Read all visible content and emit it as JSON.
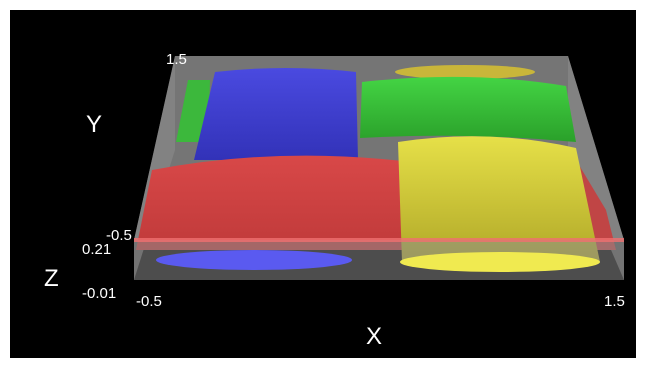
{
  "scene": {
    "background_color": "#000000",
    "box_color": "#8a8a8a",
    "colors": {
      "red": "#e85a5a",
      "green": "#3cc83c",
      "blue": "#4646d8",
      "yellow": "#d8d23c"
    }
  },
  "axes": {
    "x": {
      "label": "X",
      "min_label": "-0.5",
      "max_label": "1.5"
    },
    "y": {
      "label": "Y",
      "min_label": "-0.5",
      "max_label": "1.5"
    },
    "z": {
      "label": "Z",
      "min_label": "-0.01",
      "max_label": "0.21"
    }
  }
}
